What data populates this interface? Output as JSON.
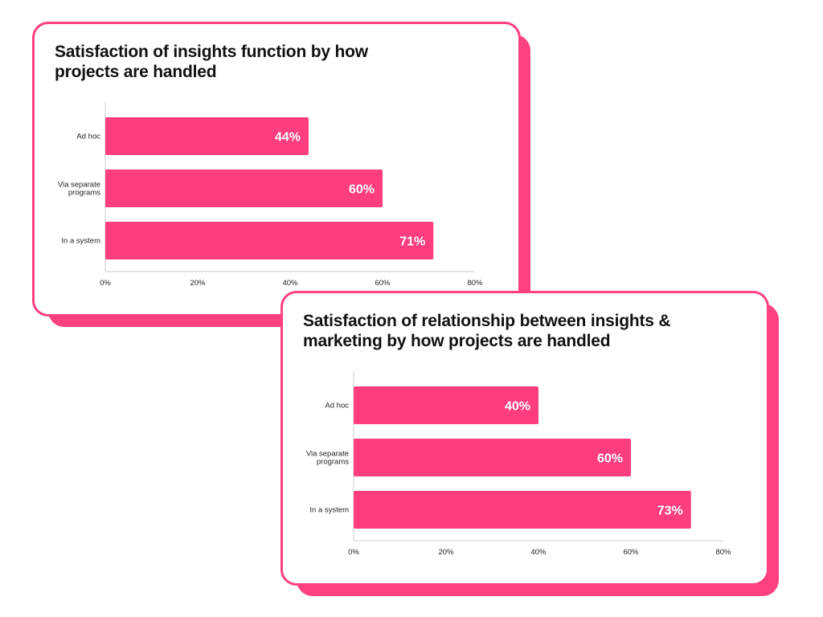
{
  "colors": {
    "accent": "#ff4081",
    "bar": "#ff3d7f",
    "axis": "#cccccc",
    "text": "#111111"
  },
  "chart_data": [
    {
      "type": "bar",
      "orientation": "horizontal",
      "title": "Satisfaction of insights function by how projects are handled",
      "categories": [
        "Ad hoc",
        "Via separate programs",
        "In a system"
      ],
      "values": [
        44,
        60,
        71
      ],
      "value_labels": [
        "44%",
        "60%",
        "71%"
      ],
      "xticks": [
        0,
        20,
        40,
        60,
        80
      ],
      "xtick_labels": [
        "0%",
        "20%",
        "40%",
        "60%",
        "80%"
      ],
      "xlim": [
        0,
        80
      ],
      "grid": false,
      "legend": "none"
    },
    {
      "type": "bar",
      "orientation": "horizontal",
      "title": "Satisfaction of relationship between insights & marketing by how projects are handled",
      "categories": [
        "Ad hoc",
        "Via separate programs",
        "In a system"
      ],
      "values": [
        40,
        60,
        73
      ],
      "value_labels": [
        "40%",
        "60%",
        "73%"
      ],
      "xticks": [
        0,
        20,
        40,
        60,
        80
      ],
      "xtick_labels": [
        "0%",
        "20%",
        "40%",
        "60%",
        "80%"
      ],
      "xlim": [
        0,
        80
      ],
      "grid": false,
      "legend": "none"
    }
  ]
}
